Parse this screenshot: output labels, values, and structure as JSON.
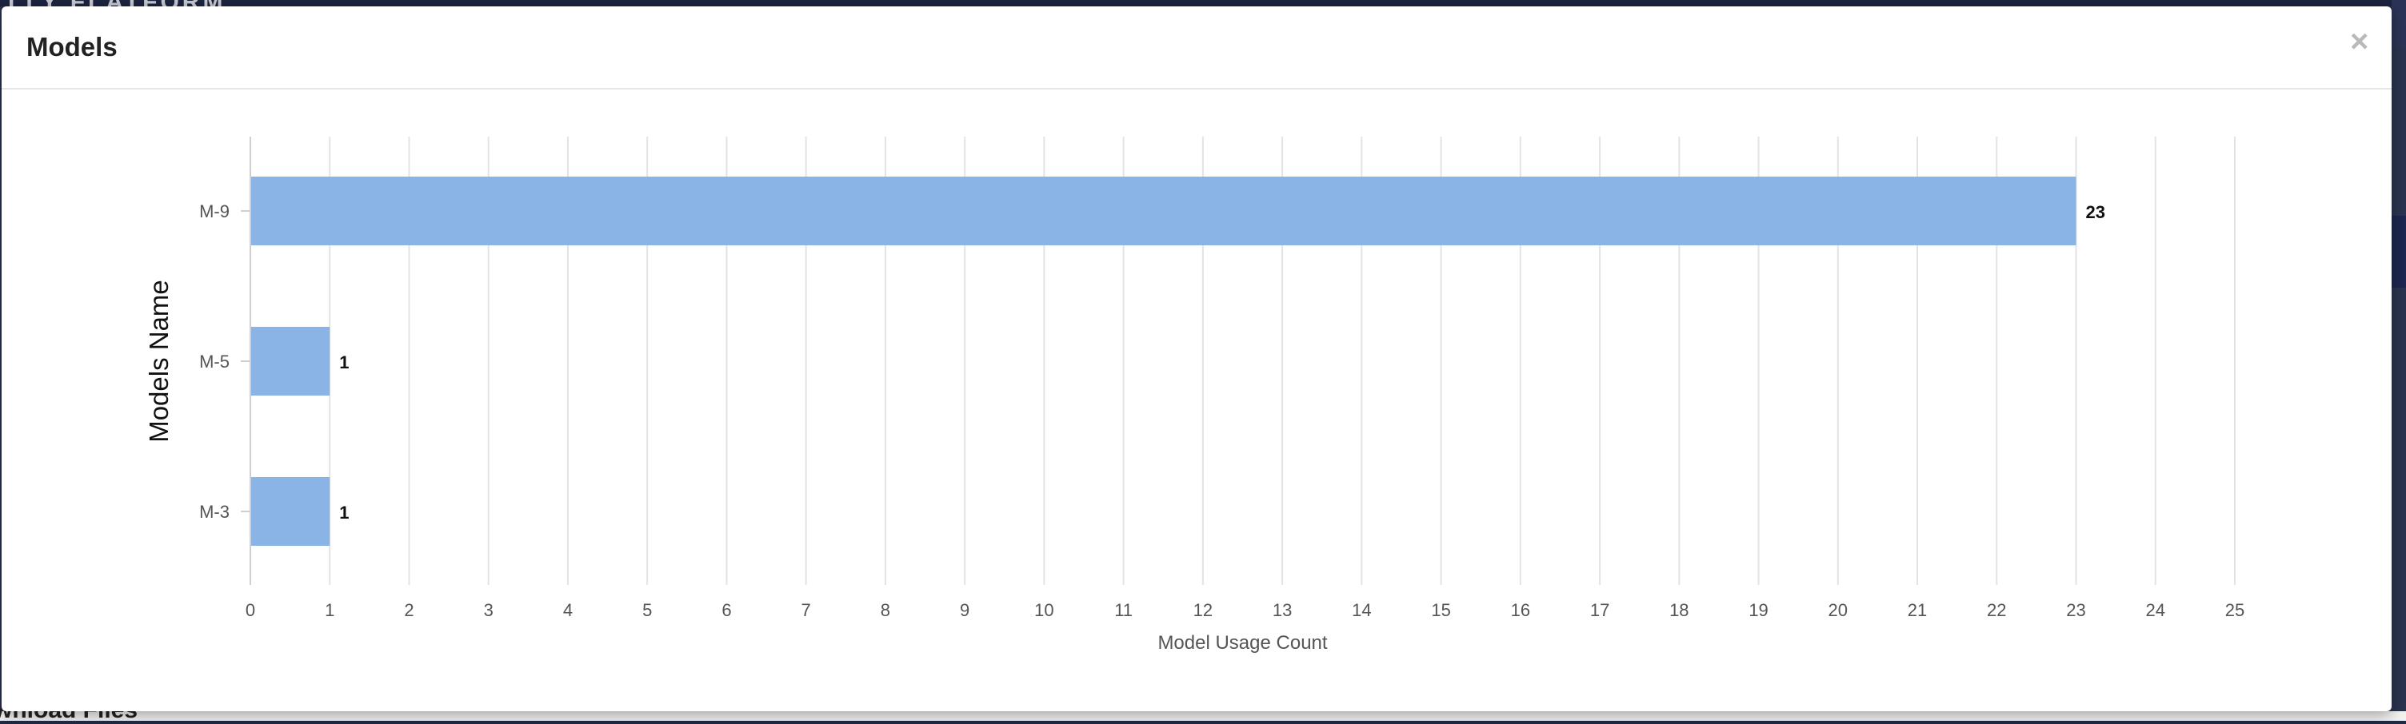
{
  "modal": {
    "title": "Models",
    "close_glyph": "×"
  },
  "background": {
    "top_text": "LLY FLATFORM",
    "bottom_text": "wnload Files"
  },
  "colors": {
    "bar": "#8ab3e6",
    "grid": "#e3e3e3",
    "axis_text": "#555555",
    "label_text": "#111111"
  },
  "chart_data": {
    "type": "bar",
    "orientation": "horizontal",
    "categories": [
      "M-9",
      "M-5",
      "M-3"
    ],
    "values": [
      23,
      1,
      1
    ],
    "data_labels": [
      "23",
      "1",
      "1"
    ],
    "xlabel": "Model Usage Count",
    "ylabel": "Models Name",
    "xlim": [
      0,
      25
    ],
    "xticks": [
      0,
      1,
      2,
      3,
      4,
      5,
      6,
      7,
      8,
      9,
      10,
      11,
      12,
      13,
      14,
      15,
      16,
      17,
      18,
      19,
      20,
      21,
      22,
      23,
      24,
      25
    ],
    "grid": true
  }
}
